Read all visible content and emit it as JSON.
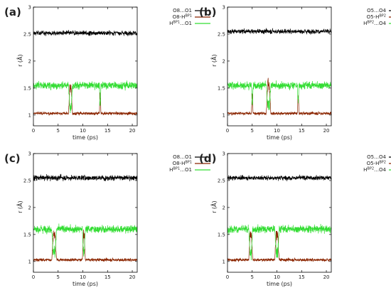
{
  "figure": {
    "panels": [
      {
        "label": "(a)",
        "chart_data": {
          "type": "line",
          "xlabel": "time (ps)",
          "ylabel": "r (Å)",
          "xlim": [
            0,
            21
          ],
          "ylim": [
            0.8,
            3
          ],
          "xticks": [
            "0",
            "5",
            "10",
            "15",
            "20"
          ],
          "yticks": [
            "1",
            "1.5",
            "2",
            "2.5",
            "3"
          ],
          "legend_position": "right",
          "series": [
            {
              "name": "O8…O1",
              "color": "#000000",
              "mean": 2.52,
              "spread": 0.06,
              "excursions": []
            },
            {
              "name": "O8-H",
              "sup": "BP1",
              "color": "#8B2500",
              "mean": 1.03,
              "spread": 0.04,
              "excursions": [
                {
                  "t": 7.5,
                  "width": 0.8,
                  "level": 1.6
                },
                {
                  "t": 13.5,
                  "width": 0.3,
                  "level": 1.45
                }
              ]
            },
            {
              "name": "H",
              "sup": "BP1",
              "suffix": "…O1",
              "color": "#33dd33",
              "mean": 1.55,
              "spread": 0.1,
              "excursions": [
                {
                  "t": 7.5,
                  "width": 0.8,
                  "level": 1.05
                },
                {
                  "t": 13.5,
                  "width": 0.3,
                  "level": 1.15
                }
              ]
            }
          ]
        }
      },
      {
        "label": "(b)",
        "chart_data": {
          "type": "line",
          "xlabel": "time (ps)",
          "ylabel": "r (Å)",
          "xlim": [
            0,
            21
          ],
          "ylim": [
            0.8,
            3
          ],
          "xticks": [
            "0",
            "5",
            "10",
            "15",
            "20"
          ],
          "yticks": [
            "1",
            "1.5",
            "2",
            "2.5",
            "3"
          ],
          "legend_position": "right",
          "series": [
            {
              "name": "O5…O4",
              "color": "#000000",
              "mean": 2.55,
              "spread": 0.06,
              "excursions": []
            },
            {
              "name": "O5-H",
              "sup": "BP2",
              "color": "#8B2500",
              "mean": 1.03,
              "spread": 0.04,
              "excursions": [
                {
                  "t": 5.0,
                  "width": 0.3,
                  "level": 1.45
                },
                {
                  "t": 8.3,
                  "width": 0.9,
                  "level": 1.7
                },
                {
                  "t": 14.3,
                  "width": 0.3,
                  "level": 1.4
                }
              ]
            },
            {
              "name": "H",
              "sup": "BP2",
              "suffix": "…O4",
              "color": "#33dd33",
              "mean": 1.55,
              "spread": 0.1,
              "excursions": [
                {
                  "t": 5.0,
                  "width": 0.3,
                  "level": 1.15
                },
                {
                  "t": 8.3,
                  "width": 0.9,
                  "level": 1.05
                },
                {
                  "t": 14.3,
                  "width": 0.3,
                  "level": 1.15
                }
              ]
            }
          ]
        }
      },
      {
        "label": "(c)",
        "chart_data": {
          "type": "line",
          "xlabel": "time (ps)",
          "ylabel": "r (Å)",
          "xlim": [
            0,
            21
          ],
          "ylim": [
            0.8,
            3
          ],
          "xticks": [
            "0",
            "5",
            "10",
            "15",
            "20"
          ],
          "yticks": [
            "1",
            "1.5",
            "2",
            "2.5",
            "3"
          ],
          "legend_position": "right",
          "series": [
            {
              "name": "O8…O1",
              "color": "#000000",
              "mean": 2.55,
              "spread": 0.07,
              "excursions": []
            },
            {
              "name": "O8-H",
              "sup": "BP1",
              "color": "#8B2500",
              "mean": 1.03,
              "spread": 0.04,
              "excursions": [
                {
                  "t": 4.2,
                  "width": 1.0,
                  "level": 1.6
                },
                {
                  "t": 10.2,
                  "width": 0.6,
                  "level": 1.6
                }
              ]
            },
            {
              "name": "H",
              "sup": "BP1",
              "suffix": "…O1",
              "color": "#33dd33",
              "mean": 1.6,
              "spread": 0.1,
              "excursions": [
                {
                  "t": 4.2,
                  "width": 1.0,
                  "level": 1.05
                },
                {
                  "t": 10.2,
                  "width": 0.6,
                  "level": 1.05
                }
              ]
            }
          ]
        }
      },
      {
        "label": "(d)",
        "chart_data": {
          "type": "line",
          "xlabel": "time (ps)",
          "ylabel": "r (Å)",
          "xlim": [
            0,
            21
          ],
          "ylim": [
            0.8,
            3
          ],
          "xticks": [
            "0",
            "5",
            "10",
            "15",
            "20"
          ],
          "yticks": [
            "1",
            "1.5",
            "2",
            "2.5",
            "3"
          ],
          "legend_position": "right",
          "series": [
            {
              "name": "O5…O4",
              "color": "#000000",
              "mean": 2.55,
              "spread": 0.06,
              "excursions": []
            },
            {
              "name": "O5-H",
              "sup": "BP2",
              "color": "#8B2500",
              "mean": 1.03,
              "spread": 0.04,
              "excursions": [
                {
                  "t": 4.7,
                  "width": 0.8,
                  "level": 1.6
                },
                {
                  "t": 10.0,
                  "width": 0.9,
                  "level": 1.6
                }
              ]
            },
            {
              "name": "H",
              "sup": "BP2",
              "suffix": "…O4",
              "color": "#33dd33",
              "mean": 1.6,
              "spread": 0.1,
              "excursions": [
                {
                  "t": 4.7,
                  "width": 0.8,
                  "level": 1.05
                },
                {
                  "t": 10.0,
                  "width": 0.9,
                  "level": 1.05
                }
              ]
            }
          ]
        }
      }
    ]
  }
}
